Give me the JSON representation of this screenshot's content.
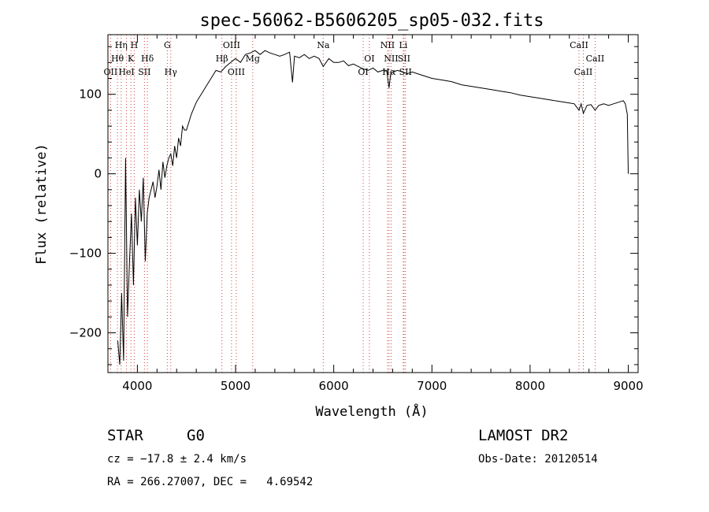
{
  "chart_data": {
    "type": "line",
    "title": "spec-56062-B5606205_sp05-032.fits",
    "xlabel": "Wavelength (Å)",
    "ylabel": "Flux (relative)",
    "xlim": [
      3700,
      9100
    ],
    "ylim": [
      -250,
      175
    ],
    "xticks": [
      4000,
      5000,
      6000,
      7000,
      8000,
      9000
    ],
    "yticks": [
      -200,
      -100,
      0,
      100
    ],
    "grid": false,
    "series": [
      {
        "x": [
          3800,
          3820,
          3840,
          3860,
          3880,
          3900,
          3920,
          3940,
          3960,
          3980,
          4000,
          4020,
          4040,
          4060,
          4080,
          4100,
          4120,
          4140,
          4160,
          4180,
          4200,
          4220,
          4240,
          4260,
          4280,
          4300,
          4320,
          4340,
          4360,
          4380,
          4400,
          4420,
          4440,
          4460,
          4480,
          4500,
          4550,
          4600,
          4650,
          4700,
          4750,
          4800,
          4850,
          4900,
          4950,
          5000,
          5050,
          5100,
          5150,
          5200,
          5250,
          5300,
          5350,
          5400,
          5450,
          5500,
          5550,
          5580,
          5600,
          5650,
          5700,
          5750,
          5800,
          5850,
          5893,
          5950,
          6000,
          6050,
          6100,
          6150,
          6200,
          6250,
          6300,
          6350,
          6400,
          6450,
          6500,
          6540,
          6563,
          6580,
          6600,
          6650,
          6700,
          6750,
          6800,
          6900,
          7000,
          7100,
          7200,
          7300,
          7400,
          7500,
          7600,
          7700,
          7800,
          7900,
          8000,
          8100,
          8200,
          8300,
          8400,
          8450,
          8498,
          8520,
          8542,
          8580,
          8620,
          8662,
          8700,
          8750,
          8800,
          8850,
          8900,
          8950,
          8970,
          8990,
          9000
        ],
        "y": [
          -210,
          -240,
          -150,
          -235,
          20,
          -180,
          -110,
          -50,
          -140,
          -30,
          -90,
          -20,
          -60,
          -5,
          -110,
          -50,
          -30,
          -20,
          -10,
          -30,
          -15,
          5,
          -20,
          15,
          -5,
          10,
          20,
          25,
          10,
          35,
          20,
          45,
          35,
          60,
          55,
          55,
          75,
          90,
          100,
          110,
          120,
          130,
          128,
          135,
          140,
          145,
          140,
          150,
          152,
          155,
          150,
          155,
          152,
          150,
          148,
          150,
          153,
          115,
          148,
          146,
          150,
          145,
          148,
          145,
          135,
          145,
          140,
          140,
          142,
          136,
          138,
          135,
          132,
          130,
          133,
          128,
          130,
          130,
          108,
          125,
          128,
          130,
          128,
          126,
          128,
          124,
          120,
          118,
          116,
          112,
          110,
          108,
          106,
          104,
          102,
          99,
          97,
          95,
          93,
          91,
          89,
          88,
          80,
          88,
          76,
          86,
          87,
          80,
          86,
          88,
          86,
          88,
          90,
          92,
          88,
          75,
          0
        ]
      }
    ],
    "spectral_lines": [
      {
        "label": "OII",
        "wavelength": 3727,
        "row": 3
      },
      {
        "label": "Hη",
        "wavelength": 3835,
        "row": 1
      },
      {
        "label": "Hθ",
        "wavelength": 3797,
        "row": 2
      },
      {
        "label": "H",
        "wavelength": 3968,
        "row": 1
      },
      {
        "label": "K",
        "wavelength": 3934,
        "row": 2
      },
      {
        "label": "HeI",
        "wavelength": 3889,
        "row": 3
      },
      {
        "label": "SII",
        "wavelength": 4072,
        "row": 3
      },
      {
        "label": "Hδ",
        "wavelength": 4102,
        "row": 2
      },
      {
        "label": "G",
        "wavelength": 4305,
        "row": 1
      },
      {
        "label": "Hγ",
        "wavelength": 4340,
        "row": 3
      },
      {
        "label": "OIII",
        "wavelength": 4959,
        "row": 1
      },
      {
        "label": "Hβ",
        "wavelength": 4861,
        "row": 2
      },
      {
        "label": "OIII",
        "wavelength": 5007,
        "row": 3
      },
      {
        "label": "Mg",
        "wavelength": 5175,
        "row": 2
      },
      {
        "label": "Na",
        "wavelength": 5893,
        "row": 1
      },
      {
        "label": "OI",
        "wavelength": 6300,
        "row": 3
      },
      {
        "label": "OI",
        "wavelength": 6363,
        "row": 2
      },
      {
        "label": "NII",
        "wavelength": 6548,
        "row": 1
      },
      {
        "label": "Li",
        "wavelength": 6708,
        "row": 1
      },
      {
        "label": "NII",
        "wavelength": 6584,
        "row": 2
      },
      {
        "label": "Hα",
        "wavelength": 6563,
        "row": 3
      },
      {
        "label": "SII",
        "wavelength": 6716,
        "row": 2
      },
      {
        "label": "SII",
        "wavelength": 6731,
        "row": 3
      },
      {
        "label": "CaII",
        "wavelength": 8498,
        "row": 1
      },
      {
        "label": "CaII",
        "wavelength": 8542,
        "row": 3
      },
      {
        "label": "CaII",
        "wavelength": 8662,
        "row": 2
      }
    ]
  },
  "info": {
    "object_class": "STAR",
    "subclass": "G0",
    "survey": "LAMOST DR2",
    "redshift_line": "cz = −17.8 ± 2.4 km/s",
    "obs_date": "Obs-Date: 20120514",
    "coords": "RA = 266.27007, DEC =   4.69542"
  }
}
